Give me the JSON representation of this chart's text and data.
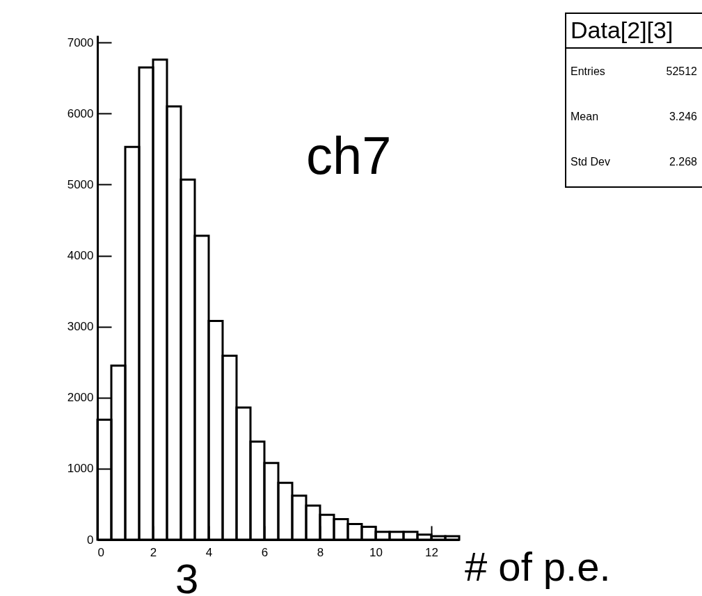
{
  "chart_data": {
    "type": "histogram",
    "xlabel": "# of p.e.",
    "bins": [
      0,
      0.5,
      1,
      1.5,
      2,
      2.5,
      3,
      3.5,
      4,
      4.5,
      5,
      5.5,
      6,
      6.5,
      7,
      7.5,
      8,
      8.5,
      9,
      9.5,
      10,
      10.5,
      11,
      11.5,
      12,
      12.5,
      13
    ],
    "values": [
      1690,
      2450,
      5530,
      6650,
      6760,
      6100,
      5070,
      4280,
      3080,
      2590,
      1860,
      1380,
      1080,
      800,
      620,
      480,
      350,
      290,
      220,
      180,
      110,
      110,
      110,
      70,
      50,
      50
    ],
    "color": "#000000",
    "xlim": [
      0,
      13
    ],
    "xticks": [
      0,
      2,
      4,
      6,
      8,
      10,
      12
    ],
    "ylim": [
      0,
      7100
    ],
    "yticks": [
      0,
      1000,
      2000,
      3000,
      4000,
      5000,
      6000,
      7000
    ],
    "annotations": [
      "ch7",
      "3",
      "Data[2][3]",
      "Entries",
      "52512",
      "Mean",
      "3.246",
      "Std Dev",
      "2.268"
    ]
  }
}
